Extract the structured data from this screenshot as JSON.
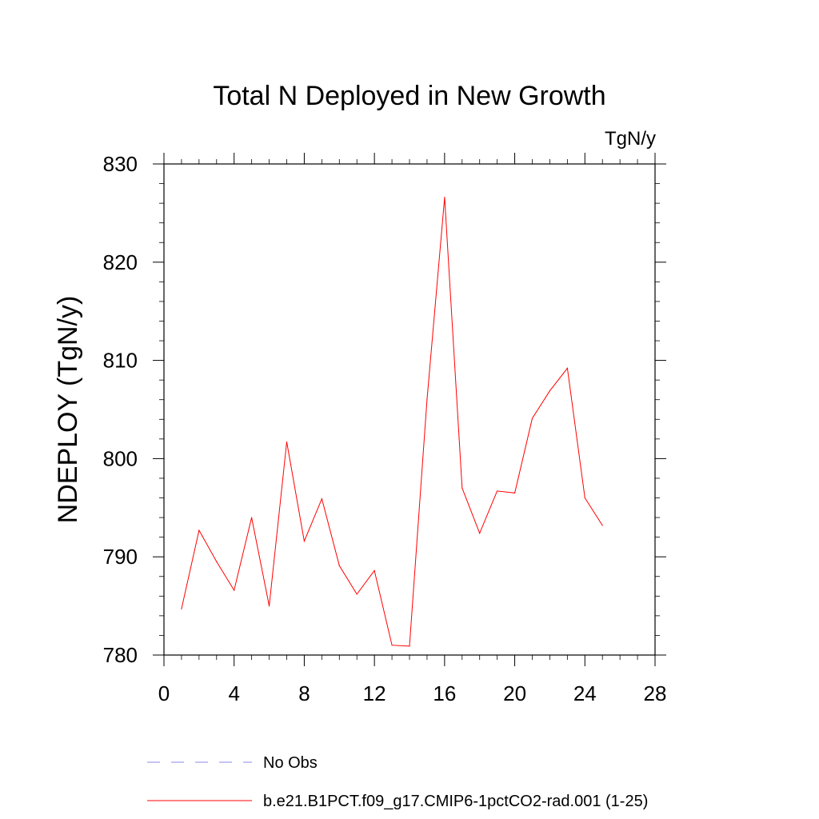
{
  "chart_data": {
    "type": "line",
    "title": "Total N Deployed in New Growth",
    "units_label": "TgN/y",
    "ylabel": "NDEPLOY  (TgN/y)",
    "xlabel": "",
    "xlim": [
      0,
      28
    ],
    "ylim": [
      780,
      830
    ],
    "xticks": [
      0,
      4,
      8,
      12,
      16,
      20,
      24,
      28
    ],
    "yticks": [
      780,
      790,
      800,
      810,
      820,
      830
    ],
    "grid": false,
    "legend_position": "bottom",
    "series": [
      {
        "name": "b.e21.B1PCT.f09_g17.CMIP6-1pctCO2-rad.001 (1-25)",
        "color": "#ff0000",
        "style": "solid",
        "x": [
          1,
          2,
          3,
          4,
          5,
          6,
          7,
          8,
          9,
          10,
          11,
          12,
          13,
          14,
          15,
          16,
          17,
          18,
          19,
          20,
          21,
          22,
          23,
          24,
          25
        ],
        "y": [
          784.7,
          792.7,
          789.5,
          786.6,
          794.0,
          785.0,
          801.7,
          791.6,
          795.9,
          789.1,
          786.2,
          788.6,
          781.0,
          780.9,
          806.0,
          826.6,
          797.0,
          792.4,
          796.7,
          796.5,
          804.1,
          806.9,
          809.2,
          796.0,
          793.2
        ]
      }
    ],
    "legend": [
      {
        "label": "No Obs",
        "color": "#8888ee",
        "style": "dashed"
      },
      {
        "label": "b.e21.B1PCT.f09_g17.CMIP6-1pctCO2-rad.001 (1-25)",
        "color": "#ff0000",
        "style": "solid"
      }
    ]
  }
}
